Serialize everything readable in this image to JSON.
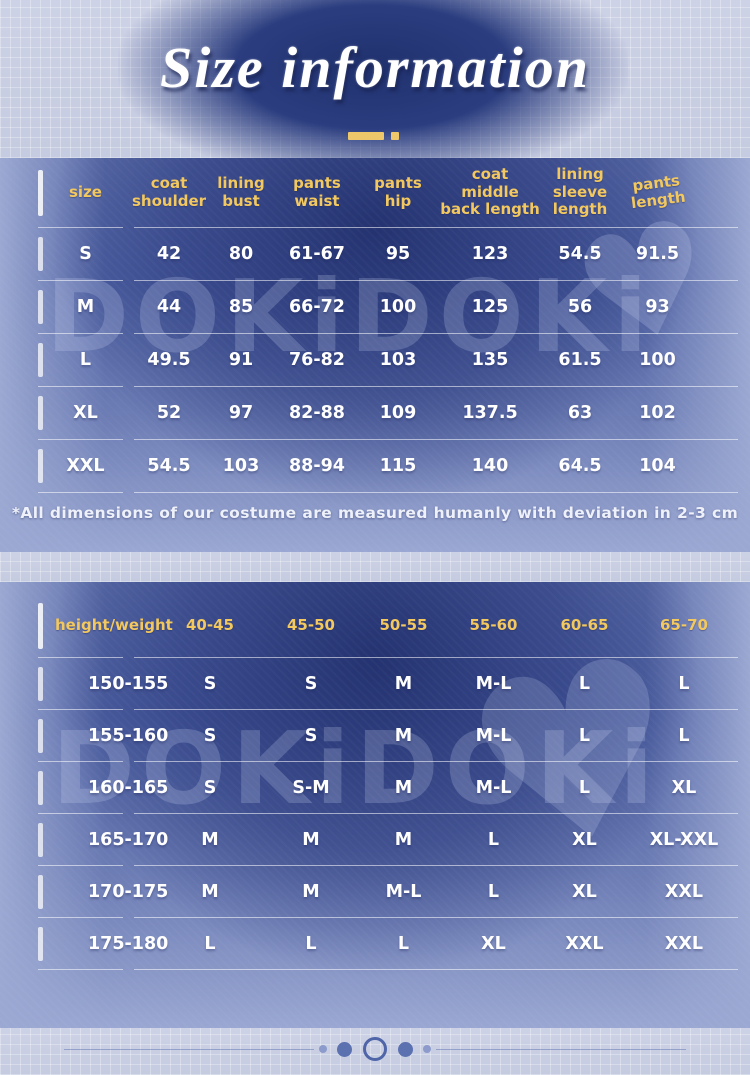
{
  "title": "Size information",
  "watermark": {
    "text": "DOKiDOKi",
    "heart": "♥"
  },
  "size_table": {
    "headers": [
      [
        "size"
      ],
      [
        "coat",
        "shoulder"
      ],
      [
        "lining",
        "bust"
      ],
      [
        "pants",
        "waist"
      ],
      [
        "pants",
        "hip"
      ],
      [
        "coat",
        "middle",
        "back length"
      ],
      [
        "lining",
        "sleeve",
        "length"
      ],
      [
        "pants",
        "length"
      ]
    ],
    "rows": [
      {
        "size": "S",
        "values": [
          "42",
          "80",
          "61-67",
          "95",
          "123",
          "54.5",
          "91.5"
        ]
      },
      {
        "size": "M",
        "values": [
          "44",
          "85",
          "66-72",
          "100",
          "125",
          "56",
          "93"
        ]
      },
      {
        "size": "L",
        "values": [
          "49.5",
          "91",
          "76-82",
          "103",
          "135",
          "61.5",
          "100"
        ]
      },
      {
        "size": "XL",
        "values": [
          "52",
          "97",
          "82-88",
          "109",
          "137.5",
          "63",
          "102"
        ]
      },
      {
        "size": "XXL",
        "values": [
          "54.5",
          "103",
          "88-94",
          "115",
          "140",
          "64.5",
          "104"
        ]
      }
    ]
  },
  "note": "*All dimensions of our costume are measured humanly with deviation in 2-3 cm",
  "height_weight_table": {
    "corner_label": "height/weight",
    "weight_headers": [
      "40-45",
      "45-50",
      "50-55",
      "55-60",
      "60-65",
      "65-70"
    ],
    "rows": [
      {
        "height": "150-155",
        "values": [
          "S",
          "S",
          "M",
          "M-L",
          "L",
          "L"
        ]
      },
      {
        "height": "155-160",
        "values": [
          "S",
          "S",
          "M",
          "M-L",
          "L",
          "L"
        ]
      },
      {
        "height": "160-165",
        "values": [
          "S",
          "S-M",
          "M",
          "M-L",
          "L",
          "XL"
        ]
      },
      {
        "height": "165-170",
        "values": [
          "M",
          "M",
          "M",
          "L",
          "XL",
          "XL-XXL"
        ]
      },
      {
        "height": "170-175",
        "values": [
          "M",
          "M",
          "M-L",
          "L",
          "XL",
          "XXL"
        ]
      },
      {
        "height": "175-180",
        "values": [
          "L",
          "L",
          "L",
          "XL",
          "XXL",
          "XXL"
        ]
      }
    ]
  },
  "colors": {
    "accent_yellow": "#f2c85f",
    "deep_blue": "#2b3d7f",
    "light_band": "#c9cee3",
    "text_white": "#ffffff"
  }
}
